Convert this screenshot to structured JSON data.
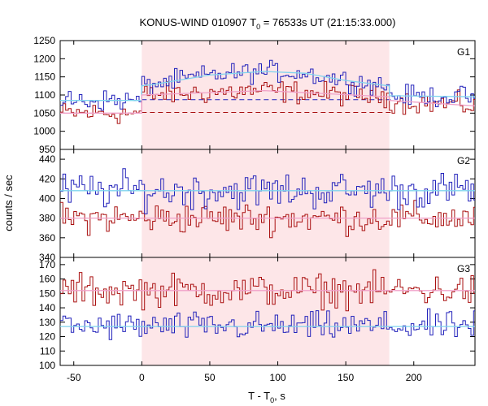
{
  "chart_data": {
    "type": "line",
    "title_main": "KONUS-WIND 010907 T",
    "title_sub": "0",
    "title_rest": " = 76533s UT (21:15:33.000)",
    "xlabel_main": "T - T",
    "xlabel_sub": "0",
    "xlabel_rest": ", s",
    "ylabel": "counts / sec",
    "xlim": [
      -60,
      245
    ],
    "xticks": [
      -50,
      0,
      50,
      100,
      150,
      200
    ],
    "shaded_interval": [
      0,
      182
    ],
    "colors": {
      "series_a": "#2222bb",
      "series_b": "#aa1111",
      "fit_a": "#7fd4ee",
      "fit_b": "#f0a0c8",
      "shade": "#fde6e8"
    },
    "panels": [
      {
        "label": "G1",
        "ylim": [
          950,
          1250
        ],
        "yticks": [
          950,
          1000,
          1050,
          1100,
          1150,
          1200,
          1250
        ],
        "bg_a": 1085,
        "bg_b": 1052,
        "high_a": 1165,
        "high_b": 1110,
        "noise_a": 20,
        "noise_b": 22,
        "fit_a": [
          [
            -60,
            1085
          ],
          [
            0,
            1085
          ],
          [
            0,
            1125
          ],
          [
            10,
            1130
          ],
          [
            50,
            1155
          ],
          [
            90,
            1165
          ],
          [
            120,
            1160
          ],
          [
            150,
            1140
          ],
          [
            182,
            1125
          ],
          [
            182,
            1098
          ],
          [
            245,
            1095
          ]
        ],
        "fit_b": [
          [
            -60,
            1050
          ],
          [
            0,
            1050
          ],
          [
            0,
            1100
          ],
          [
            90,
            1112
          ],
          [
            182,
            1095
          ],
          [
            182,
            1085
          ],
          [
            245,
            1070
          ]
        ],
        "bg_line_a": 1087,
        "bg_line_b": 1052
      },
      {
        "label": "G2",
        "ylim": [
          340,
          450
        ],
        "yticks": [
          340,
          360,
          380,
          400,
          420,
          440
        ],
        "bg_a": 407,
        "bg_b": 380,
        "high_a": 407,
        "high_b": 380,
        "noise_a": 13,
        "noise_b": 11,
        "fit_a": [
          [
            -60,
            408
          ],
          [
            245,
            408
          ]
        ],
        "fit_b": [
          [
            -60,
            380
          ],
          [
            245,
            380
          ]
        ]
      },
      {
        "label": "G3",
        "ylim": [
          100,
          175
        ],
        "yticks": [
          100,
          110,
          120,
          130,
          140,
          150,
          160,
          170
        ],
        "bg_a": 127,
        "bg_b": 151,
        "high_a": 127,
        "high_b": 151,
        "noise_a": 7,
        "noise_b": 8,
        "fit_a": [
          [
            -60,
            127
          ],
          [
            245,
            127
          ]
        ],
        "fit_b": [
          [
            -60,
            152
          ],
          [
            245,
            152
          ]
        ]
      }
    ]
  }
}
